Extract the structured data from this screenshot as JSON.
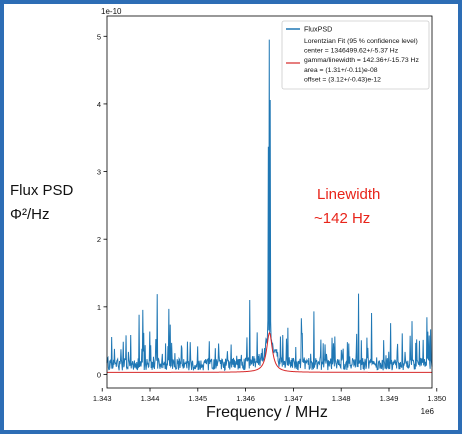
{
  "colors": {
    "frame": "#2d6db5",
    "series_psd": "#1f77b4",
    "series_fit": "#d62728",
    "annotation": "#e8241a"
  },
  "chart_data": {
    "type": "line",
    "xlabel": "Frequency / MHz",
    "ylabel_line1": "Flux PSD",
    "ylabel_line2": "Φ²/Hz",
    "x_offset_label": "1e6",
    "y_offset_label": "1e-10",
    "xlim": [
      1.3431,
      1.3499
    ],
    "ylim": [
      -2e-11,
      5.3e-10
    ],
    "xticks": [
      1.343,
      1.344,
      1.345,
      1.346,
      1.347,
      1.348,
      1.349,
      1.35
    ],
    "xtick_labels": [
      "1.343",
      "1.344",
      "1.345",
      "1.346",
      "1.347",
      "1.348",
      "1.349",
      "1.350"
    ],
    "yticks": [
      0,
      1e-10,
      2e-10,
      3e-10,
      4e-10,
      5e-10
    ],
    "ytick_labels": [
      "0",
      "1",
      "2",
      "3",
      "4",
      "5"
    ],
    "grid": false,
    "legend_position": "upper right",
    "legend": {
      "series1": "FluxPSD",
      "series2_lines": [
        "Lorentzian Fit (95 % confidence level)",
        "center = 1346499.62+/-5.37 Hz",
        "gamma/linewidth = 142.36+/-15.73 Hz",
        "area = (1.31+/-0.11)e-08",
        "offset = (3.12+/-0.43)e-12"
      ]
    },
    "fit": {
      "center_hz": 1346499.62,
      "linewidth_hz": 142.36,
      "area": 1.31e-08,
      "offset": 3.12e-12
    },
    "psd_summary": {
      "noise_floor": 2e-11,
      "peak_value": 4.95e-10,
      "peak_x_mhz": 1.3465
    },
    "series": [
      {
        "name": "FluxPSD"
      },
      {
        "name": "Lorentzian Fit (95 % confidence level)"
      }
    ],
    "annotation_line1": "Linewidth",
    "annotation_line2": "~142 Hz"
  }
}
